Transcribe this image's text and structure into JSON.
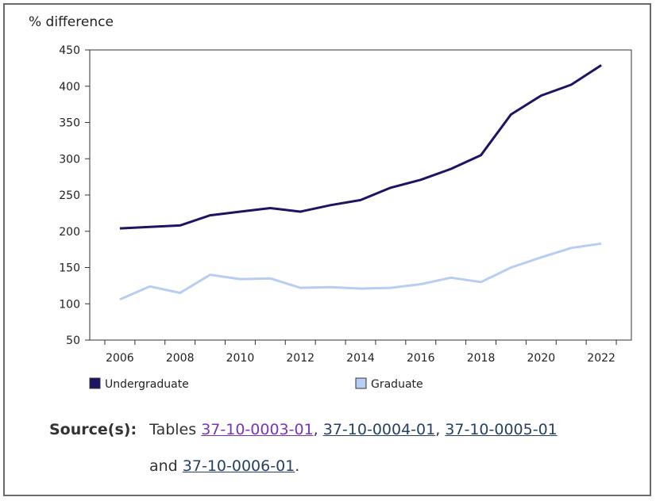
{
  "chart_data": {
    "type": "line",
    "ylabel": "% difference",
    "ylim": [
      50,
      450
    ],
    "yticks": [
      50,
      100,
      150,
      200,
      250,
      300,
      350,
      400,
      450
    ],
    "x": [
      2006,
      2007,
      2008,
      2009,
      2010,
      2011,
      2012,
      2013,
      2014,
      2015,
      2016,
      2017,
      2018,
      2019,
      2020,
      2021,
      2022
    ],
    "xticks": [
      2006,
      2008,
      2010,
      2012,
      2014,
      2016,
      2018,
      2020,
      2022
    ],
    "grid": false,
    "legend": "bottom",
    "series": [
      {
        "name": "Undergraduate",
        "color": "#1d1464",
        "values": [
          204,
          206,
          208,
          222,
          227,
          232,
          227,
          236,
          243,
          260,
          271,
          286,
          305,
          361,
          387,
          402,
          429
        ]
      },
      {
        "name": "Graduate",
        "color": "#b7cdf3",
        "values": [
          106,
          124,
          115,
          140,
          134,
          135,
          122,
          123,
          121,
          122,
          127,
          136,
          130,
          150,
          164,
          177,
          183
        ]
      }
    ]
  },
  "source": {
    "label": "Source(s):",
    "prefix": "Tables",
    "links": [
      "37-10-0003-01",
      "37-10-0004-01",
      "37-10-0005-01",
      "37-10-0006-01"
    ],
    "sep1": ",",
    "sep2": ",",
    "and_text": "and",
    "end": "."
  }
}
